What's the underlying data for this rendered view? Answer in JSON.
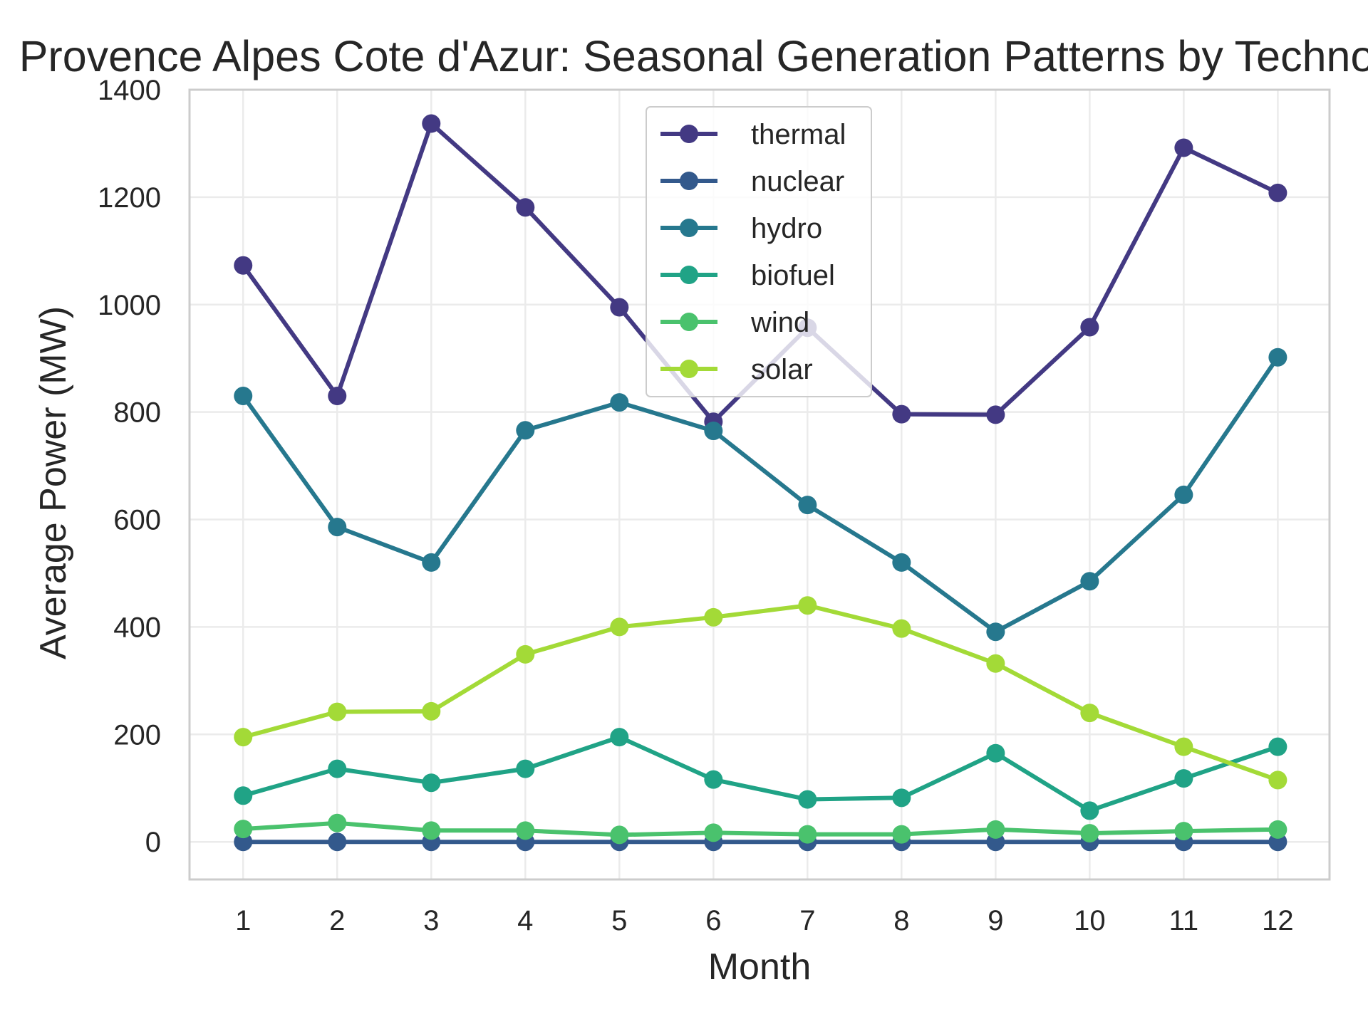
{
  "chart_data": {
    "type": "line",
    "title": "Provence Alpes Cote d'Azur: Seasonal Generation Patterns by Technology",
    "xlabel": "Month",
    "ylabel": "Average Power (MW)",
    "x": [
      1,
      2,
      3,
      4,
      5,
      6,
      7,
      8,
      9,
      10,
      11,
      12
    ],
    "xticks": [
      "1",
      "2",
      "3",
      "4",
      "5",
      "6",
      "7",
      "8",
      "9",
      "10",
      "11",
      "12"
    ],
    "xlim": [
      0.43,
      12.55
    ],
    "ylim": [
      -70,
      1400
    ],
    "yticks": [
      0,
      200,
      400,
      600,
      800,
      1000,
      1200,
      1400
    ],
    "grid": true,
    "legend_position": "upper-center",
    "series": [
      {
        "name": "thermal",
        "color": "#433983",
        "values": [
          1073,
          830,
          1337,
          1181,
          995,
          782,
          957,
          796,
          795,
          958,
          1292,
          1208
        ]
      },
      {
        "name": "nuclear",
        "color": "#33598c",
        "values": [
          0,
          0,
          0,
          0,
          0,
          0,
          0,
          0,
          0,
          0,
          0,
          0
        ]
      },
      {
        "name": "hydro",
        "color": "#26788e",
        "values": [
          830,
          586,
          520,
          766,
          818,
          765,
          627,
          520,
          391,
          485,
          646,
          902
        ]
      },
      {
        "name": "biofuel",
        "color": "#20a386",
        "values": [
          86,
          136,
          110,
          136,
          195,
          116,
          79,
          82,
          165,
          58,
          118,
          177
        ]
      },
      {
        "name": "wind",
        "color": "#4ac26d",
        "values": [
          24,
          35,
          21,
          21,
          13,
          17,
          14,
          14,
          23,
          16,
          20,
          23
        ]
      },
      {
        "name": "solar",
        "color": "#a3da37",
        "values": [
          195,
          242,
          243,
          349,
          400,
          418,
          440,
          397,
          332,
          240,
          177,
          115
        ]
      }
    ]
  }
}
